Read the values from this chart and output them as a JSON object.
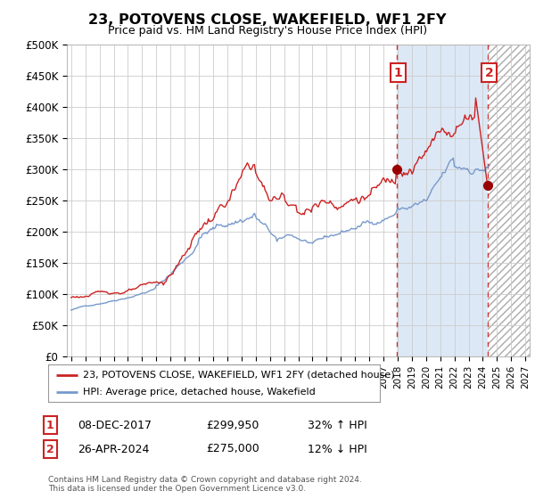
{
  "title": "23, POTOVENS CLOSE, WAKEFIELD, WF1 2FY",
  "subtitle": "Price paid vs. HM Land Registry's House Price Index (HPI)",
  "ylim": [
    0,
    500000
  ],
  "yticks": [
    0,
    50000,
    100000,
    150000,
    200000,
    250000,
    300000,
    350000,
    400000,
    450000,
    500000
  ],
  "ytick_labels": [
    "£0",
    "£50K",
    "£100K",
    "£150K",
    "£200K",
    "£250K",
    "£300K",
    "£350K",
    "£400K",
    "£450K",
    "£500K"
  ],
  "hpi_color": "#7799cc",
  "price_color": "#cc2222",
  "shade_color": "#dce8f5",
  "hatch_color": "#cccccc",
  "plot_bg": "#ffffff",
  "grid_color": "#cccccc",
  "marker1_x": 2017.92,
  "marker1_y": 299950,
  "marker2_x": 2024.33,
  "marker2_y": 275000,
  "vline1_x": 2017.92,
  "vline2_x": 2024.33,
  "legend_label_red": "23, POTOVENS CLOSE, WAKEFIELD, WF1 2FY (detached house)",
  "legend_label_blue": "HPI: Average price, detached house, Wakefield",
  "table_row1": [
    "1",
    "08-DEC-2017",
    "£299,950",
    "32% ↑ HPI"
  ],
  "table_row2": [
    "2",
    "26-APR-2024",
    "£275,000",
    "12% ↓ HPI"
  ],
  "footer": "Contains HM Land Registry data © Crown copyright and database right 2024.\nThis data is licensed under the Open Government Licence v3.0.",
  "xmin": 1994.7,
  "xmax": 2027.3
}
